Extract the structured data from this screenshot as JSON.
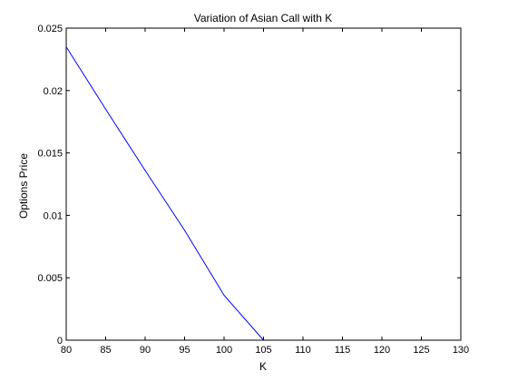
{
  "chart_data": {
    "type": "line",
    "title": "Variation of Asian Call with K",
    "xlabel": "K",
    "ylabel": "Options Price",
    "xlim": [
      80,
      130
    ],
    "ylim": [
      0,
      0.025
    ],
    "xticks": [
      "80",
      "85",
      "90",
      "95",
      "100",
      "105",
      "110",
      "115",
      "120",
      "125",
      "130"
    ],
    "yticks": [
      "0",
      "0.005",
      "0.01",
      "0.015",
      "0.02",
      "0.025"
    ],
    "grid": false,
    "legend": "none",
    "series": [
      {
        "color": "#0000ff",
        "x": [
          80,
          85,
          90,
          95,
          100,
          105
        ],
        "y": [
          0.0235,
          0.0185,
          0.0136,
          0.0088,
          0.0036,
          0.0
        ]
      }
    ]
  }
}
